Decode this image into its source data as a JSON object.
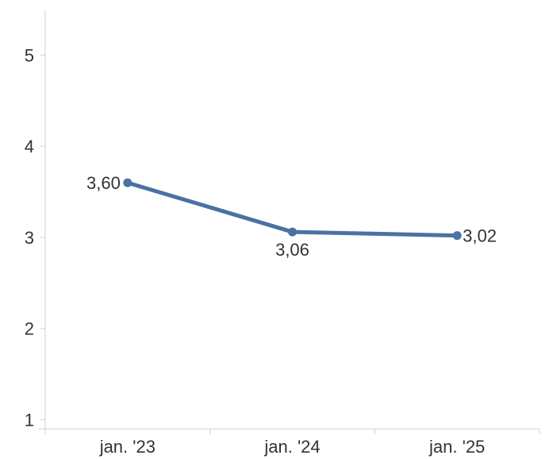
{
  "chart_data": {
    "type": "line",
    "title": "",
    "xlabel": "",
    "ylabel": "",
    "categories": [
      "jan. '23",
      "jan. '24",
      "jan. '25"
    ],
    "series": [
      {
        "values": [
          3.6,
          3.06,
          3.02
        ],
        "labels": [
          "3,60",
          "3,06",
          "3,02"
        ],
        "color": "#4a72a3"
      }
    ],
    "yticks": [
      1,
      2,
      3,
      4,
      5
    ],
    "ytick_labels": [
      "1",
      "2",
      "3",
      "4",
      "5"
    ],
    "ylim": [
      0.9,
      5.5
    ],
    "grid": false,
    "legend": "none"
  }
}
